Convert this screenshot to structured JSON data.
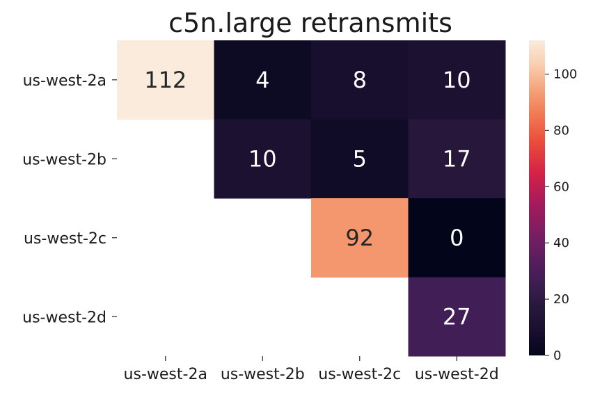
{
  "chart_data": {
    "type": "heatmap",
    "title": "c5n.large retransmits",
    "x_labels": [
      "us-west-2a",
      "us-west-2b",
      "us-west-2c",
      "us-west-2d"
    ],
    "y_labels": [
      "us-west-2a",
      "us-west-2b",
      "us-west-2c",
      "us-west-2d"
    ],
    "values": [
      [
        112,
        4,
        8,
        10
      ],
      [
        null,
        10,
        5,
        17
      ],
      [
        null,
        null,
        92,
        0
      ],
      [
        null,
        null,
        null,
        27
      ]
    ],
    "vmin": 0,
    "vmax": 112,
    "colorbar_ticks": [
      0,
      20,
      40,
      60,
      80,
      100
    ],
    "colormap": "rocket"
  }
}
